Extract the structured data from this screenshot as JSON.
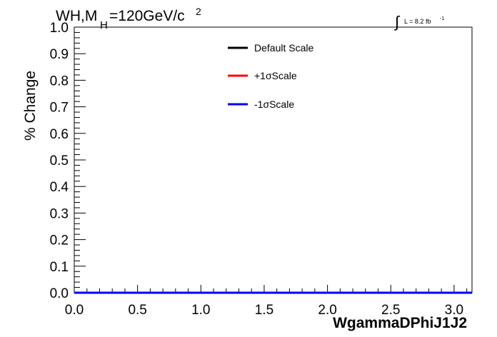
{
  "title_parts": {
    "main": "WH,M",
    "sub": "H",
    "rest": "=120GeV/c",
    "sup": "2"
  },
  "lumi_parts": {
    "integral": "∫",
    "text": "L = 8.2 fb",
    "sup": "-1"
  },
  "chart_data": {
    "type": "line",
    "xlabel": "WgammaDPhiJ1J2",
    "ylabel": "% Change",
    "xlim": [
      0,
      3.1416
    ],
    "ylim": [
      0,
      1.0
    ],
    "x_ticks": [
      0.0,
      0.5,
      1.0,
      1.5,
      2.0,
      2.5,
      3.0
    ],
    "x_tick_labels": [
      "0.0",
      "0.5",
      "1.0",
      "1.5",
      "2.0",
      "2.5",
      "3.0"
    ],
    "y_ticks": [
      0.0,
      0.1,
      0.2,
      0.3,
      0.4,
      0.5,
      0.6,
      0.7,
      0.8,
      0.9,
      1.0
    ],
    "y_tick_labels": [
      "0.0",
      "0.1",
      "0.2",
      "0.3",
      "0.4",
      "0.5",
      "0.6",
      "0.7",
      "0.8",
      "0.9",
      "1.0"
    ],
    "grid": false,
    "legend_position": "top-center",
    "series": [
      {
        "name": "Default Scale",
        "color": "#000000",
        "x": [
          0.0,
          3.1416
        ],
        "y": [
          0.0,
          0.0
        ]
      },
      {
        "name": "+1σScale",
        "color": "#ff0000",
        "x": [
          0.0,
          3.1416
        ],
        "y": [
          0.0,
          0.0
        ]
      },
      {
        "name": "-1σScale",
        "color": "#0000ff",
        "x": [
          0.0,
          3.1416
        ],
        "y": [
          0.0,
          0.0
        ]
      }
    ]
  }
}
